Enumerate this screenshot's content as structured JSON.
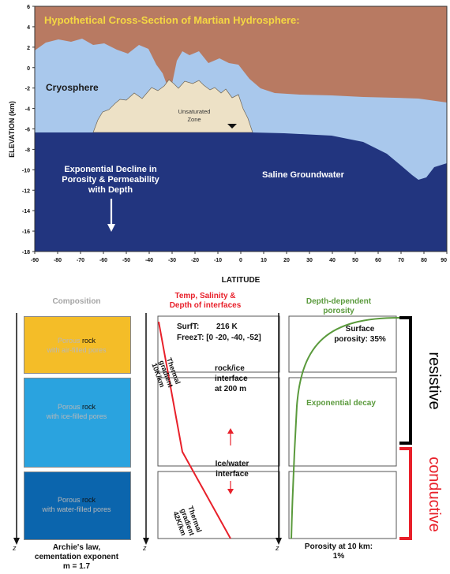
{
  "cross_section": {
    "title": "Hypothetical Cross-Section of Martian Hydrosphere:",
    "ylabel": "ELEVATION (km)",
    "xlabel": "LATITUDE",
    "y_ticks": [
      "6",
      "4",
      "2",
      "0",
      "-2",
      "-4",
      "-6",
      "-8",
      "-10",
      "-12",
      "-14",
      "-16",
      "-18"
    ],
    "x_ticks": [
      "-90",
      "-80",
      "-70",
      "-60",
      "-50",
      "-40",
      "-30",
      "-20",
      "-10",
      "0",
      "10",
      "20",
      "30",
      "40",
      "50",
      "60",
      "70",
      "80",
      "90"
    ],
    "labels": {
      "cryosphere": "Cryosphere",
      "unsaturated_zone": [
        "Unsaturated",
        "Zone"
      ],
      "saline_groundwater": "Saline Groundwater",
      "decline": [
        "Exponential Decline in",
        "Porosity & Permeability",
        "with Depth"
      ]
    },
    "colors": {
      "sky": "#b87a62",
      "cryosphere": "#a9c8ec",
      "unsaturated": "#ede1c6",
      "groundwater": "#22357f",
      "title": "#f5d842"
    }
  },
  "composition": {
    "heading": "Composition",
    "boxes": [
      {
        "pre": "Porous ",
        "word": "rock",
        "post": "with air-filled pores",
        "color": "#f4bd28"
      },
      {
        "pre": "Porous ",
        "word": "rock",
        "post": "with ice-filled pores",
        "color": "#2aa3df"
      },
      {
        "pre": "Porous ",
        "word": "rock",
        "post": "with water-filled pores",
        "color": "#0b65ad"
      }
    ],
    "axis_label": "z",
    "footer": [
      "Archie's law,",
      "cementation exponent",
      "m = 1.7"
    ]
  },
  "temperature": {
    "heading": [
      "Temp, Salinity &",
      "Depth of interfaces"
    ],
    "surf_label": "SurfT:",
    "surf_value": "216 K",
    "freez_label": "FreezT: [0 -20, -40, -52]",
    "grad1": [
      "Thermal",
      "gradient",
      "10K/km"
    ],
    "interface1": [
      "rock/ice",
      "interface",
      "at 200 m"
    ],
    "interface2": [
      "Ice/water",
      "interface"
    ],
    "grad2": [
      "Thermal",
      "gradient",
      "42K/km"
    ],
    "axis_label": "z",
    "heading_color": "#e8202a",
    "line_color": "#e8202a"
  },
  "porosity": {
    "heading": [
      "Depth-dependent",
      "porosity"
    ],
    "surface": [
      "Surface",
      "porosity: 35%"
    ],
    "decay": "Exponential decay",
    "footer": [
      "Porosity at 10 km:",
      "1%"
    ],
    "axis_label": "z",
    "curve_color": "#5a9a3c"
  },
  "side_labels": {
    "resistive": "resistive",
    "conductive": "conductive",
    "resistive_color": "#000000",
    "conductive_color": "#e8202a"
  }
}
